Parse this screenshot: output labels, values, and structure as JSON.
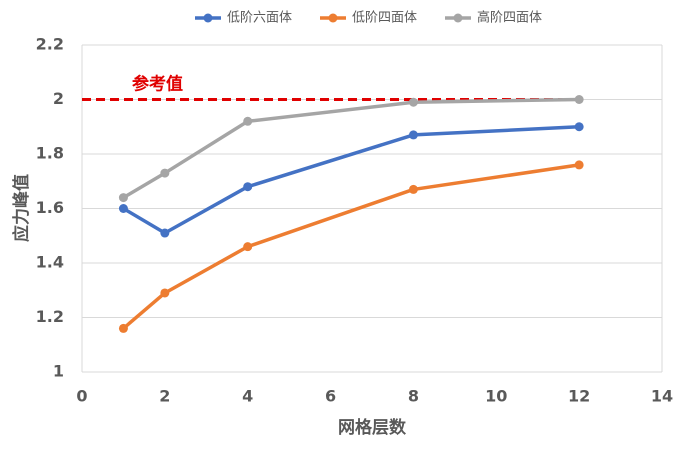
{
  "chart_data": {
    "type": "line",
    "x_label": "网格层数",
    "y_label": "应力峰值",
    "xlim": [
      0,
      14
    ],
    "xticks": [
      0,
      2,
      4,
      6,
      8,
      10,
      12,
      14
    ],
    "ylim": [
      1,
      2.2
    ],
    "yticks": [
      1,
      1.2,
      1.4,
      1.6,
      1.8,
      2,
      2.2
    ],
    "grid": true,
    "legend": "top",
    "x": [
      1,
      2,
      4,
      8,
      12
    ],
    "series": [
      {
        "name": "低阶六面体",
        "color": "#4472c4",
        "values": [
          1.6,
          1.51,
          1.68,
          1.87,
          1.9
        ]
      },
      {
        "name": "低阶四面体",
        "color": "#ed7d31",
        "values": [
          1.16,
          1.29,
          1.46,
          1.67,
          1.76
        ]
      },
      {
        "name": "高阶四面体",
        "color": "#a5a5a5",
        "values": [
          1.64,
          1.73,
          1.92,
          1.99,
          2
        ]
      }
    ],
    "reference": {
      "label": "参考值",
      "y": 2,
      "x": [
        0,
        12
      ],
      "color": "#e00000"
    }
  }
}
